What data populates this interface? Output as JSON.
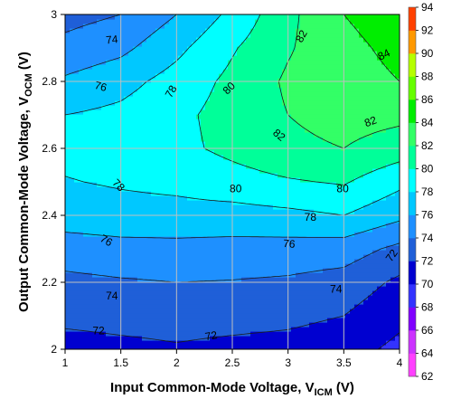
{
  "chart_data": {
    "type": "heatmap",
    "subtype": "filled-contour",
    "xlabel": {
      "main": "Input Common-Mode Voltage, V",
      "sub": "ICM",
      "unit": " (V)"
    },
    "ylabel": {
      "main": "Output Common-Mode Voltage, V",
      "sub": "OCM",
      "unit": " (V)"
    },
    "xlim": [
      1,
      4
    ],
    "ylim": [
      2,
      3
    ],
    "xticks": [
      "1",
      "1.5",
      "2",
      "2.5",
      "3",
      "3.5",
      "4"
    ],
    "yticks": [
      "2",
      "2.2",
      "2.4",
      "2.6",
      "2.8",
      "3"
    ],
    "grid": true,
    "grid_x": [
      1.5,
      2,
      2.5,
      3,
      3.5
    ],
    "grid_y": [
      2.2,
      2.4,
      2.6,
      2.8
    ],
    "x": [
      1.0,
      1.5,
      2.0,
      2.5,
      3.0,
      3.5,
      4.0
    ],
    "y": [
      2.0,
      2.1,
      2.2,
      2.3,
      2.4,
      2.5,
      2.6,
      2.7,
      2.8,
      2.9,
      3.0
    ],
    "z": [
      [
        71.2,
        71.5,
        71.8,
        71.5,
        71.3,
        70.8,
        69.5
      ],
      [
        72.5,
        72.7,
        72.8,
        72.7,
        72.5,
        72.0,
        70.5
      ],
      [
        73.5,
        73.8,
        74.0,
        73.9,
        73.7,
        73.2,
        71.6
      ],
      [
        75.0,
        75.3,
        75.4,
        75.3,
        75.2,
        75.0,
        73.5
      ],
      [
        77.0,
        77.3,
        77.3,
        77.2,
        77.5,
        78.0,
        76.5
      ],
      [
        77.9,
        78.2,
        78.5,
        79.2,
        79.8,
        80.2,
        78.5
      ],
      [
        78.5,
        78.8,
        79.5,
        80.5,
        81.5,
        82.0,
        81.0
      ],
      [
        78.0,
        78.5,
        79.5,
        80.8,
        82.0,
        82.8,
        82.5
      ],
      [
        76.3,
        77.3,
        78.8,
        80.5,
        82.3,
        83.2,
        84.0
      ],
      [
        74.6,
        75.5,
        77.5,
        79.8,
        81.8,
        83.5,
        84.5
      ],
      [
        73.3,
        74.0,
        76.0,
        78.5,
        81.5,
        84.0,
        85.0
      ]
    ],
    "levels": [
      62,
      64,
      66,
      68,
      70,
      72,
      74,
      76,
      78,
      80,
      82,
      84,
      86,
      88,
      90,
      92,
      94
    ],
    "level_colors": [
      "#ff40ff",
      "#cc33ff",
      "#8000ff",
      "#3333ff",
      "#0000d0",
      "#1f5fd8",
      "#1e90ff",
      "#00c8ff",
      "#00ffff",
      "#00ff99",
      "#33ff66",
      "#00ee00",
      "#66ff00",
      "#b5ff00",
      "#ff9900",
      "#ff4000",
      "#ee0000"
    ],
    "colorbar_ticks": [
      "94",
      "92",
      "90",
      "88",
      "86",
      "84",
      "82",
      "80",
      "78",
      "76",
      "74",
      "72",
      "70",
      "68",
      "66",
      "64",
      "62"
    ],
    "contour_labels": [
      {
        "text": "74",
        "x": 1.42,
        "y": 2.925,
        "angle": -5
      },
      {
        "text": "76",
        "x": 1.32,
        "y": 2.785,
        "angle": 15
      },
      {
        "text": "78",
        "x": 1.95,
        "y": 2.77,
        "angle": -60
      },
      {
        "text": "80",
        "x": 2.47,
        "y": 2.78,
        "angle": -45
      },
      {
        "text": "82",
        "x": 3.12,
        "y": 2.935,
        "angle": -60
      },
      {
        "text": "84",
        "x": 3.86,
        "y": 2.88,
        "angle": -25
      },
      {
        "text": "82",
        "x": 2.92,
        "y": 2.64,
        "angle": 40
      },
      {
        "text": "82",
        "x": 3.74,
        "y": 2.68,
        "angle": -20
      },
      {
        "text": "78",
        "x": 1.48,
        "y": 2.49,
        "angle": 45
      },
      {
        "text": "80",
        "x": 2.53,
        "y": 2.48,
        "angle": 0
      },
      {
        "text": "80",
        "x": 3.49,
        "y": 2.48,
        "angle": 0
      },
      {
        "text": "78",
        "x": 3.2,
        "y": 2.395,
        "angle": 0
      },
      {
        "text": "76",
        "x": 1.37,
        "y": 2.325,
        "angle": 30
      },
      {
        "text": "76",
        "x": 3.01,
        "y": 2.315,
        "angle": 5
      },
      {
        "text": "74",
        "x": 1.42,
        "y": 2.16,
        "angle": 0
      },
      {
        "text": "74",
        "x": 3.43,
        "y": 2.18,
        "angle": 0
      },
      {
        "text": "72",
        "x": 3.93,
        "y": 2.28,
        "angle": -55
      },
      {
        "text": "72",
        "x": 1.3,
        "y": 2.055,
        "angle": 0
      },
      {
        "text": "72",
        "x": 2.31,
        "y": 2.04,
        "angle": -10
      }
    ]
  }
}
